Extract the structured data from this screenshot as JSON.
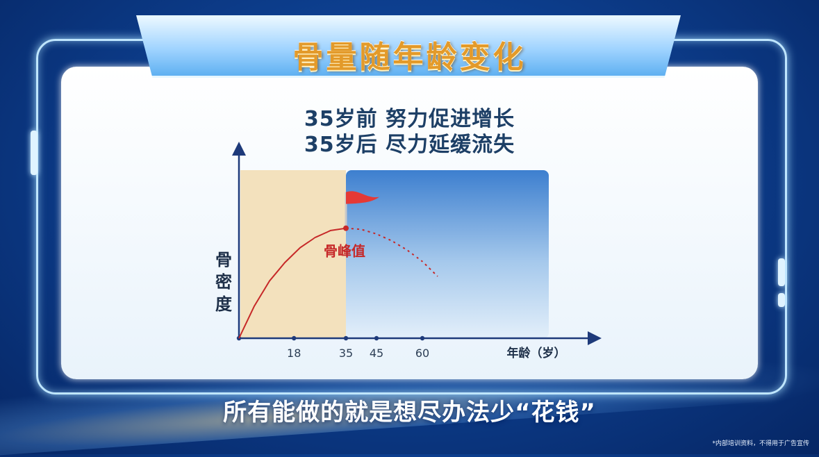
{
  "title": "骨量随年龄变化",
  "subtitle_lines": [
    "35岁前 努力促进增长",
    "35岁后 尽力延缓流失"
  ],
  "bottom_caption": "所有能做的就是想尽办法少“花钱”",
  "footnote": "*内部培训资料，不得用于广告宣传",
  "colors": {
    "curve": "#c62828",
    "flag": "#e53935",
    "axis": "#1e3a7a",
    "growth_zone": "#f3e1bd",
    "loss_zone_top": "#3d7fcf",
    "loss_zone_bottom": "#dcebf8"
  },
  "chart_data": {
    "type": "line",
    "title": "",
    "xlabel": "年龄（岁）",
    "ylabel": "骨密度",
    "x_ticks": [
      18,
      35,
      45,
      60
    ],
    "xlim": [
      0,
      80
    ],
    "ylim": [
      0,
      1
    ],
    "y_ticks_shown": false,
    "grid": false,
    "series": [
      {
        "style": "solid",
        "x": [
          0,
          5,
          10,
          15,
          20,
          25,
          30,
          35
        ],
        "y": [
          0,
          0.28,
          0.5,
          0.66,
          0.79,
          0.88,
          0.94,
          0.96
        ]
      },
      {
        "style": "dashed",
        "x": [
          35,
          40,
          45,
          50,
          55,
          60,
          65
        ],
        "y": [
          0.96,
          0.95,
          0.91,
          0.85,
          0.77,
          0.67,
          0.54
        ]
      }
    ],
    "annotations": [
      {
        "text": "骨峰值",
        "x": 35,
        "y": 0.96,
        "marker": "flag"
      }
    ],
    "regions": [
      {
        "x_from": 0,
        "x_to": 35,
        "meaning": "growth"
      },
      {
        "x_from": 35,
        "x_to": 80,
        "meaning": "loss"
      }
    ]
  }
}
